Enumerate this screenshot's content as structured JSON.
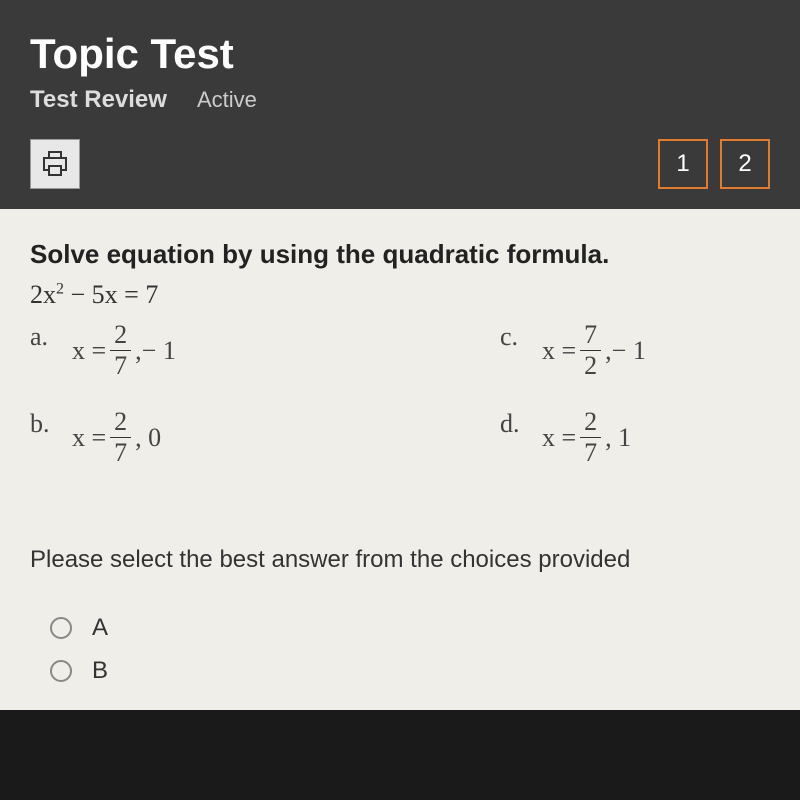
{
  "header": {
    "title": "Topic Test",
    "subtitle_bold": "Test Review",
    "subtitle_status": "Active",
    "nav": [
      "1",
      "2"
    ]
  },
  "question": {
    "prompt": "Solve equation by using the quadratic formula.",
    "equation_html": "2x<sup>2</sup> − 5x = 7",
    "choices": [
      {
        "letter": "a.",
        "prefix": "x =",
        "num": "2",
        "den": "7",
        "suffix": ",− 1"
      },
      {
        "letter": "c.",
        "prefix": "x =",
        "num": "7",
        "den": "2",
        "suffix": ",− 1"
      },
      {
        "letter": "b.",
        "prefix": "x =",
        "num": "2",
        "den": "7",
        "suffix": ", 0"
      },
      {
        "letter": "d.",
        "prefix": "x =",
        "num": "2",
        "den": "7",
        "suffix": ", 1"
      }
    ],
    "instruction": "Please select the best answer from the choices provided",
    "answers": [
      "A",
      "B"
    ]
  },
  "colors": {
    "header_bg": "#3a3a3a",
    "content_bg": "#f0eee9",
    "accent": "#e07b2f",
    "print_bg": "#e8e8e8"
  }
}
